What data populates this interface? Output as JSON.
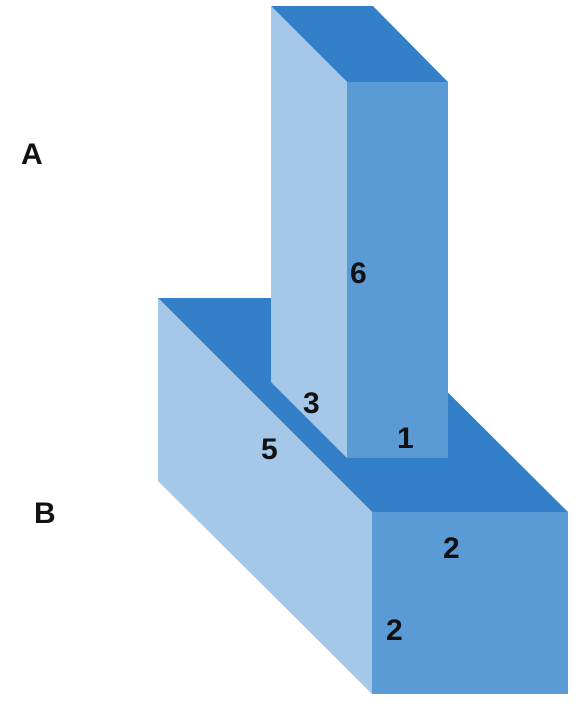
{
  "labels": {
    "a": "A",
    "b": "B"
  },
  "dimensions": {
    "block_a_height": "6",
    "block_a_depth": "3",
    "block_a_width": "1",
    "block_b_length": "5",
    "block_b_width": "2",
    "block_b_height": "2"
  },
  "colors": {
    "top_face": "#3480c8",
    "front_face": "#5b9bd5",
    "side_face": "#a5c7e8",
    "text": "#111111"
  }
}
